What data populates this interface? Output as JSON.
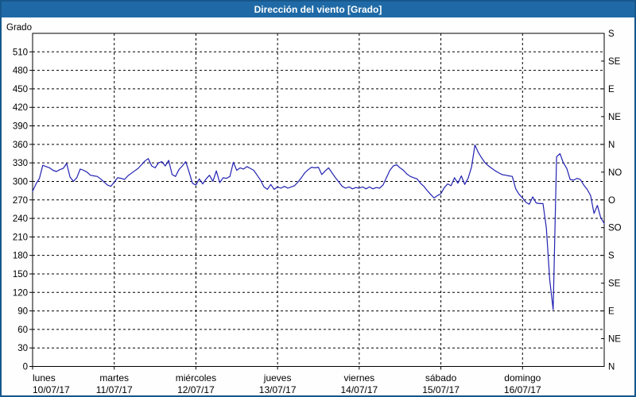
{
  "title": "Dirección del viento [Grado]",
  "colors": {
    "titlebar_bg": "#1f6aa6",
    "frame_border": "#16578c",
    "line": "#2222b2",
    "grid": "#000000",
    "plot_bg": "#ffffff"
  },
  "chart_data": {
    "type": "line",
    "title": "Dirección del viento [Grado]",
    "ylabel_left": "Grado",
    "ylim": [
      0,
      540
    ],
    "grid": "dashed",
    "y_left_ticks": [
      0,
      30,
      60,
      90,
      120,
      150,
      180,
      210,
      240,
      270,
      300,
      330,
      360,
      390,
      420,
      450,
      480,
      510
    ],
    "y_right_ticks": [
      {
        "v": 540,
        "label": "S"
      },
      {
        "v": 495,
        "label": "SE"
      },
      {
        "v": 450,
        "label": "E"
      },
      {
        "v": 405,
        "label": "NE"
      },
      {
        "v": 360,
        "label": "N"
      },
      {
        "v": 315,
        "label": "NO"
      },
      {
        "v": 270,
        "label": "O"
      },
      {
        "v": 225,
        "label": "SO"
      },
      {
        "v": 180,
        "label": "S"
      },
      {
        "v": 135,
        "label": "SE"
      },
      {
        "v": 90,
        "label": "E"
      },
      {
        "v": 45,
        "label": "NE"
      },
      {
        "v": 0,
        "label": "N"
      }
    ],
    "x_days": [
      {
        "name": "lunes",
        "date": "10/07/17"
      },
      {
        "name": "martes",
        "date": "11/07/17"
      },
      {
        "name": "miércoles",
        "date": "12/07/17"
      },
      {
        "name": "jueves",
        "date": "13/07/17"
      },
      {
        "name": "viernes",
        "date": "14/07/17"
      },
      {
        "name": "sábado",
        "date": "15/07/17"
      },
      {
        "name": "domingo",
        "date": "16/07/17"
      }
    ],
    "xlim_hours": [
      0,
      168
    ],
    "series": [
      {
        "name": "Dirección del viento",
        "unit": "Grado",
        "sampling": "hourly",
        "values_hourly": [
          284,
          296,
          305,
          326,
          324,
          322,
          318,
          316,
          319,
          321,
          329,
          307,
          300,
          306,
          320,
          318,
          315,
          310,
          309,
          308,
          304,
          299,
          294,
          292,
          299,
          306,
          305,
          303,
          309,
          313,
          317,
          321,
          327,
          333,
          337,
          325,
          322,
          330,
          332,
          325,
          334,
          311,
          308,
          319,
          325,
          332,
          315,
          297,
          294,
          304,
          296,
          304,
          310,
          300,
          317,
          298,
          306,
          305,
          308,
          331,
          318,
          322,
          320,
          324,
          321,
          318,
          310,
          302,
          291,
          287,
          295,
          287,
          291,
          289,
          292,
          289,
          291,
          293,
          299,
          306,
          314,
          319,
          323,
          322,
          323,
          311,
          317,
          322,
          314,
          306,
          299,
          292,
          289,
          291,
          288,
          290,
          289,
          291,
          288,
          291,
          288,
          290,
          289,
          294,
          306,
          318,
          325,
          327,
          322,
          318,
          312,
          308,
          306,
          304,
          297,
          292,
          285,
          279,
          273,
          277,
          280,
          290,
          296,
          293,
          306,
          297,
          309,
          295,
          305,
          323,
          359,
          347,
          338,
          330,
          325,
          321,
          317,
          314,
          311,
          310,
          309,
          308,
          288,
          279,
          273,
          266,
          263,
          275,
          265,
          264,
          264,
          225,
          140,
          92,
          340,
          345,
          330,
          321,
          303,
          302,
          305,
          303,
          294,
          287,
          277,
          248,
          261,
          241,
          232
        ]
      }
    ]
  }
}
